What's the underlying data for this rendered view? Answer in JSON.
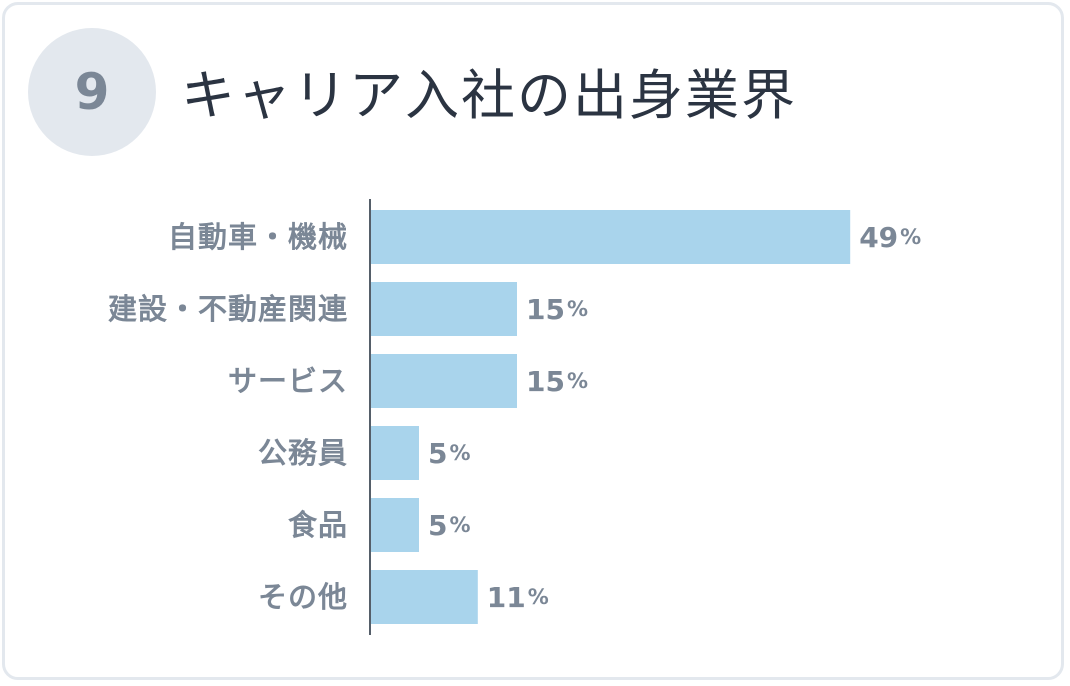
{
  "badge": {
    "number": "9"
  },
  "header": {
    "title": "キャリア入社の出身業界"
  },
  "colors": {
    "bar": "#a9d4ec",
    "axis": "#555e69",
    "label": "#7b8796",
    "badge_bg": "#e3e8ee",
    "card_border": "#e3e8ee"
  },
  "chart_data": {
    "type": "bar",
    "orientation": "horizontal",
    "categories": [
      "自動車・機械",
      "建設・不動産関連",
      "サービス",
      "公務員",
      "食品",
      "その他"
    ],
    "values": [
      49,
      15,
      15,
      5,
      5,
      11
    ],
    "unit": "%",
    "title": "",
    "xlabel": "",
    "ylabel": "",
    "xlim": [
      0,
      60
    ],
    "grid": false,
    "legend": "none"
  }
}
